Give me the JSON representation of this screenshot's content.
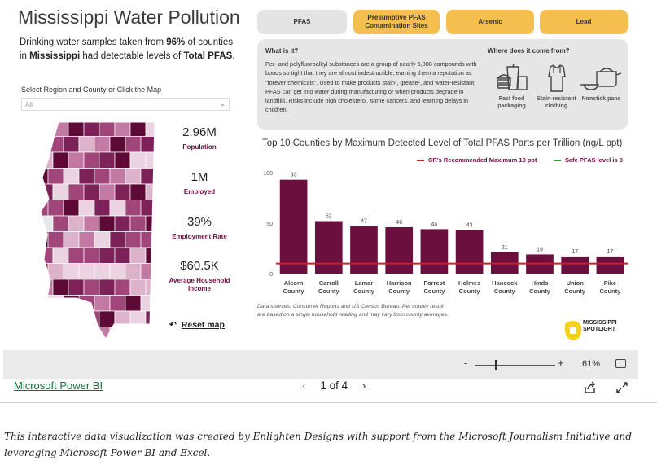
{
  "report": {
    "title": "Mississippi Water Pollution",
    "intro": {
      "pre": "Drinking water samples taken from ",
      "pct": "96%",
      "mid": " of counties in ",
      "state": "Mississippi",
      "post": " had detectable levels of ",
      "substance": "Total PFAS",
      "end": "."
    },
    "region_label": "Select Region and County or Click the Map",
    "region_value": "All",
    "kpis": [
      {
        "value": "2.96M",
        "label": "Population"
      },
      {
        "value": "1M",
        "label": "Employed"
      },
      {
        "value": "39%",
        "label": "Employment Rate"
      },
      {
        "value": "$60.5K",
        "label": "Average Household Income"
      }
    ],
    "reset_label": "Reset map",
    "tabs": [
      {
        "label": "PFAS",
        "active": true
      },
      {
        "label": "Presumptive PFAS Contamination Sites",
        "active": false
      },
      {
        "label": "Arsenic",
        "active": false
      },
      {
        "label": "Lead",
        "active": false
      }
    ],
    "info": {
      "heading": "What is it?",
      "text": "Per- and polyfluoroalkyl substances are a group of nearly 5,000 compounds with bonds so tight that they are almost indestructible, earning them a reputation as \"forever chemicals\". Used to make products stain-, grease-, and water-resistant, PFAS can get into water during manufacturing or when products degrade in landfills. Risks include high cholesterol, some cancers, and learning delays in children.",
      "sources_heading": "Where does it come from?",
      "sources": [
        {
          "label": "Fast food packaging",
          "icon": "fast-food-icon"
        },
        {
          "label": "Stain-resistant clothing",
          "icon": "shirt-icon"
        },
        {
          "label": "Nonstick pans",
          "icon": "pan-icon"
        }
      ]
    },
    "chart_title": "Top 10 Counties by Maximum Detected Level of Total PFAS Parts per Trillion (ng/L ppt)",
    "legend": [
      {
        "label": "CR's Recommended Maximum 10 ppt",
        "color": "#d01c24"
      },
      {
        "label": "Safe PFAS level is 0",
        "color": "#2aa02a"
      }
    ],
    "footnote": "Data sources: Consumer Reports and US Census Bureau. Per county result are based on a single household reading and may vary from county averages.",
    "logo": {
      "line1": "MISSISSIPPI",
      "line2": "SPOTLIGHT"
    }
  },
  "chart_data": {
    "type": "bar",
    "title": "Top 10 Counties by Maximum Detected Level of Total PFAS Parts per Trillion (ng/L ppt)",
    "categories": [
      "Alcorn County",
      "Carroll County",
      "Lamar County",
      "Harrison County",
      "Forrest County",
      "Holmes County",
      "Hancock County",
      "Hinds County",
      "Union County",
      "Pike County"
    ],
    "values": [
      93,
      52,
      47,
      46,
      44,
      43,
      21,
      19,
      17,
      17
    ],
    "yticks": [
      0,
      50,
      100
    ],
    "ylim": [
      0,
      100
    ],
    "reference_line": {
      "label": "CR's Recommended Maximum 10 ppt",
      "value": 10
    },
    "bar_color": "#6b0f3f",
    "line_color": "#d01c24",
    "grid": false
  },
  "viewer": {
    "zoom_minus": "-",
    "zoom_plus": "+",
    "zoom_pct": "61%",
    "brand": "Microsoft Power BI",
    "page_indicator": "1 of 4",
    "prev_arrow": "‹",
    "next_arrow": "›"
  },
  "caption": "This interactive data visualization was created by Enlighten Designs with support from the Microsoft Journalism Initiative and leveraging Microsoft Power BI and Excel."
}
